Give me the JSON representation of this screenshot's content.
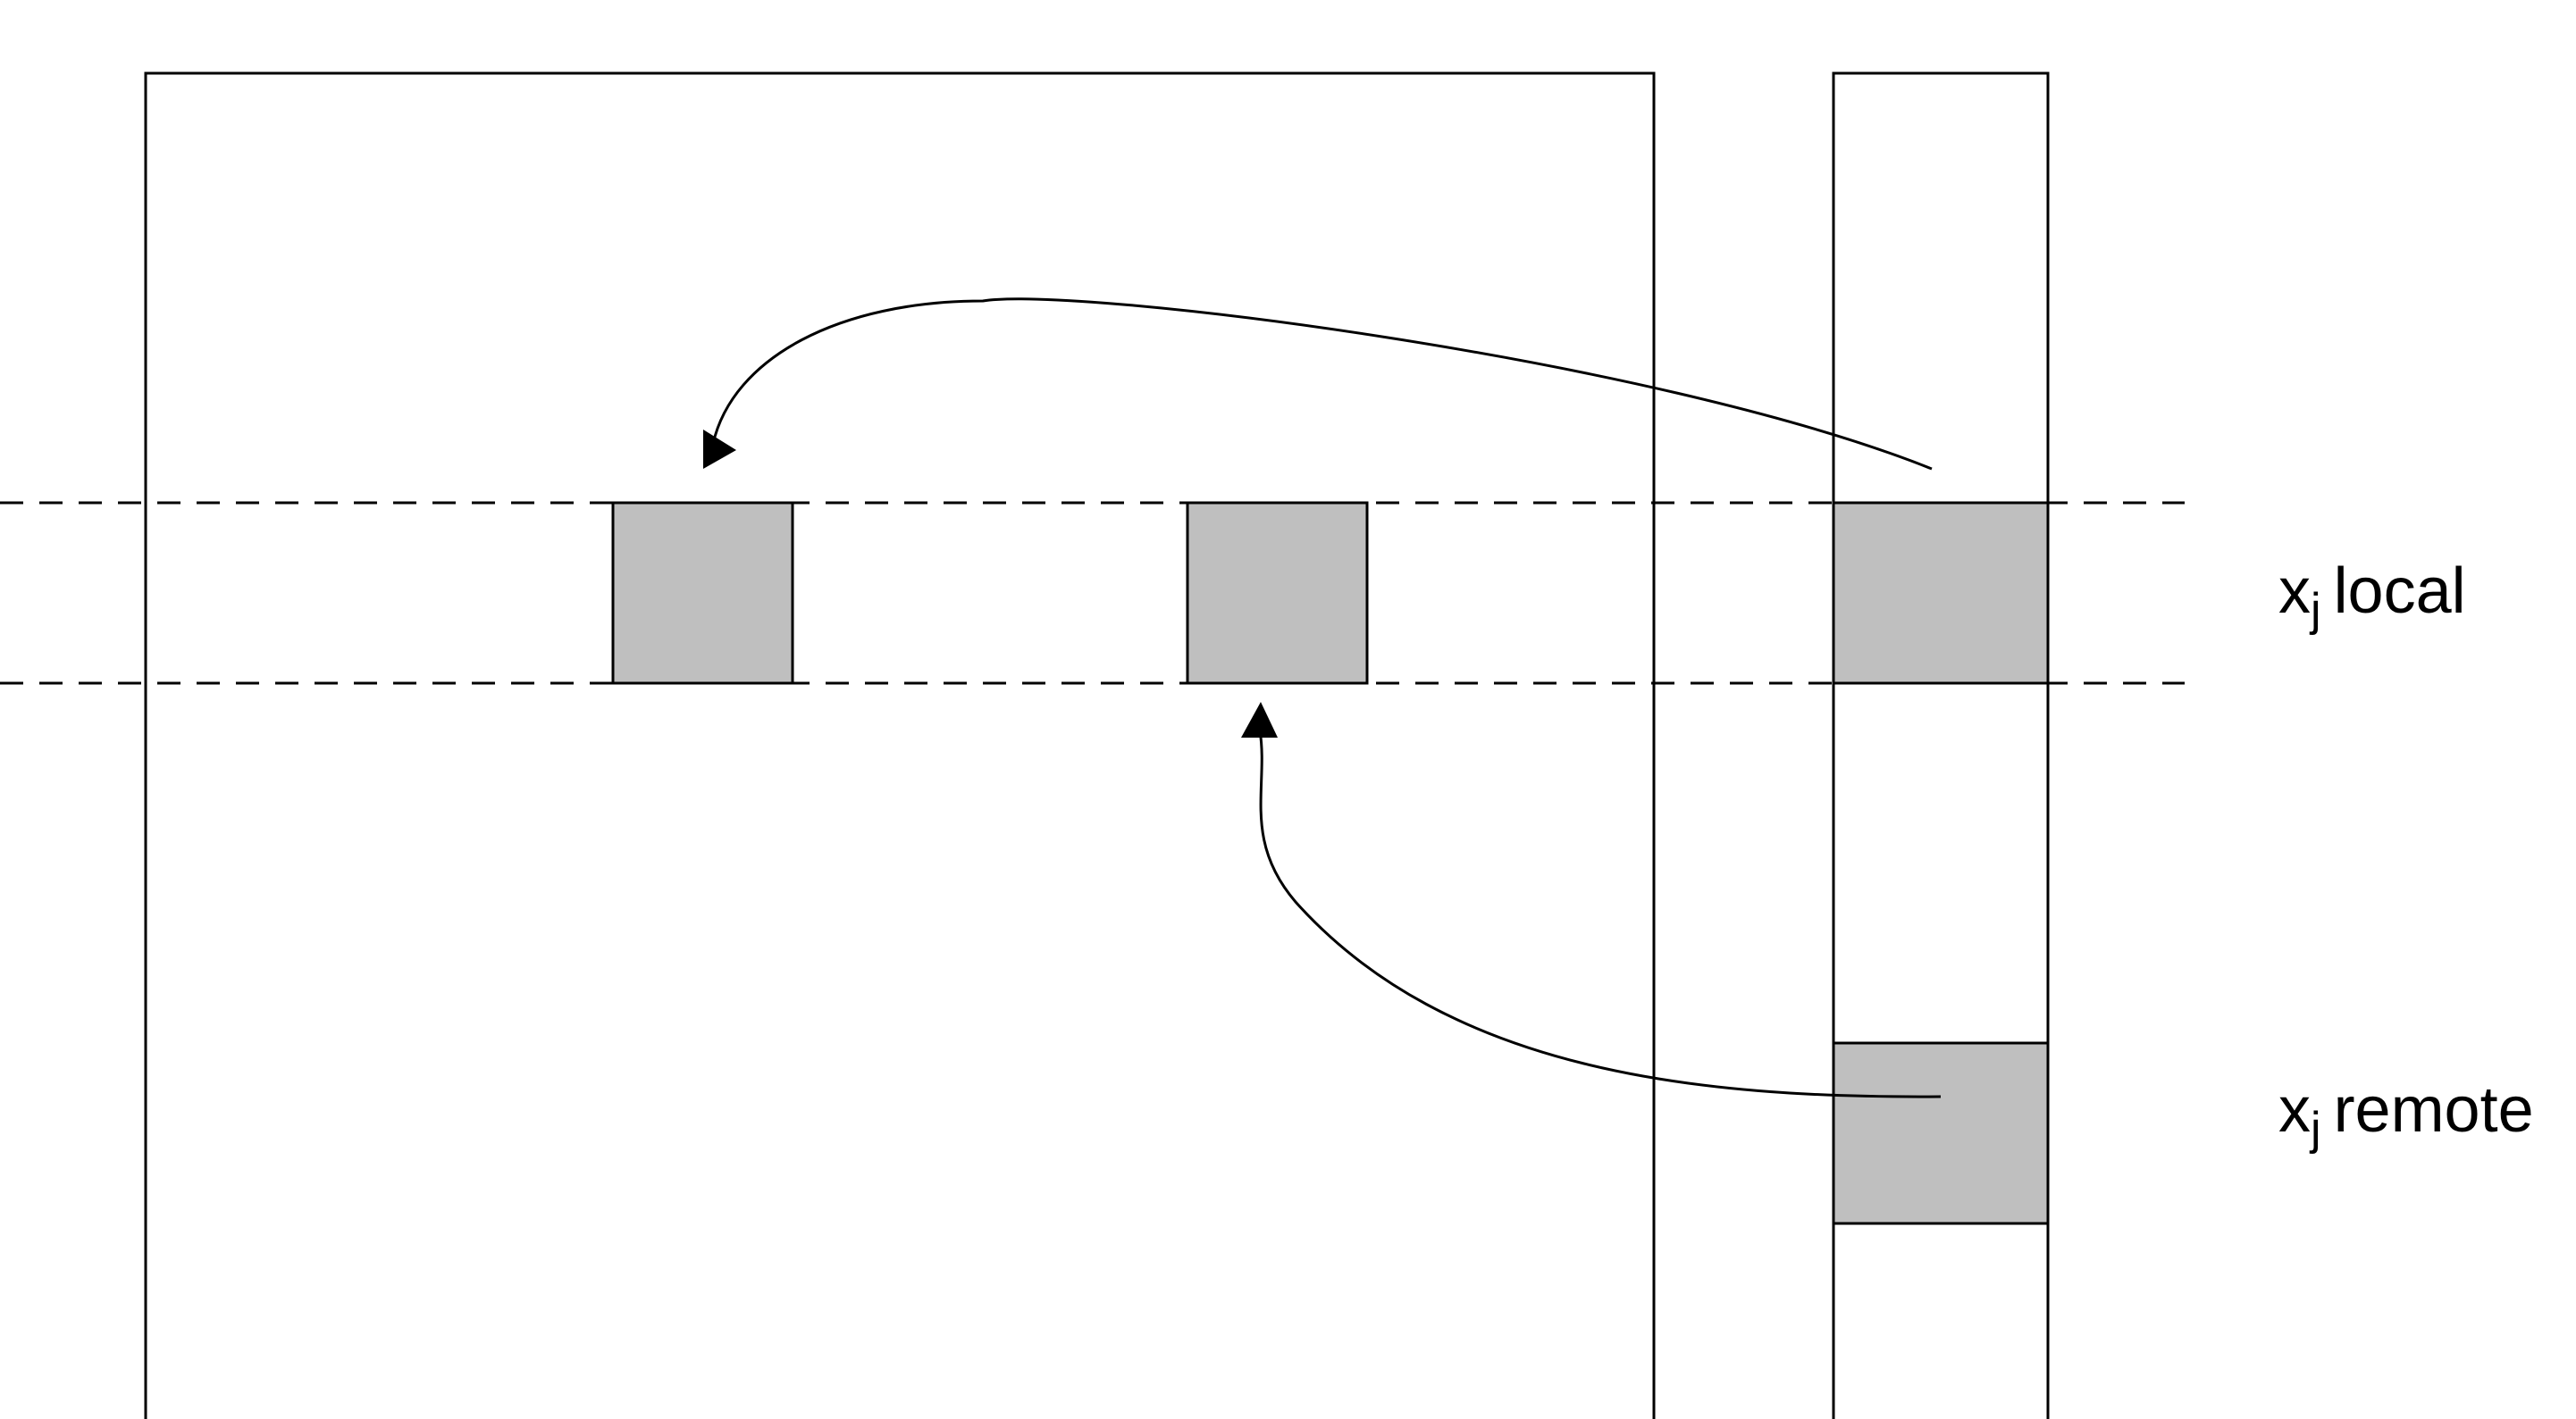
{
  "labels": {
    "local": {
      "variable": "x",
      "subscript": "j",
      "text": "local"
    },
    "remote": {
      "variable": "x",
      "subscript": "j",
      "text": "remote"
    }
  },
  "colors": {
    "stroke": "#000000",
    "fill_gray": "#bfbfbf",
    "background": "#ffffff"
  }
}
